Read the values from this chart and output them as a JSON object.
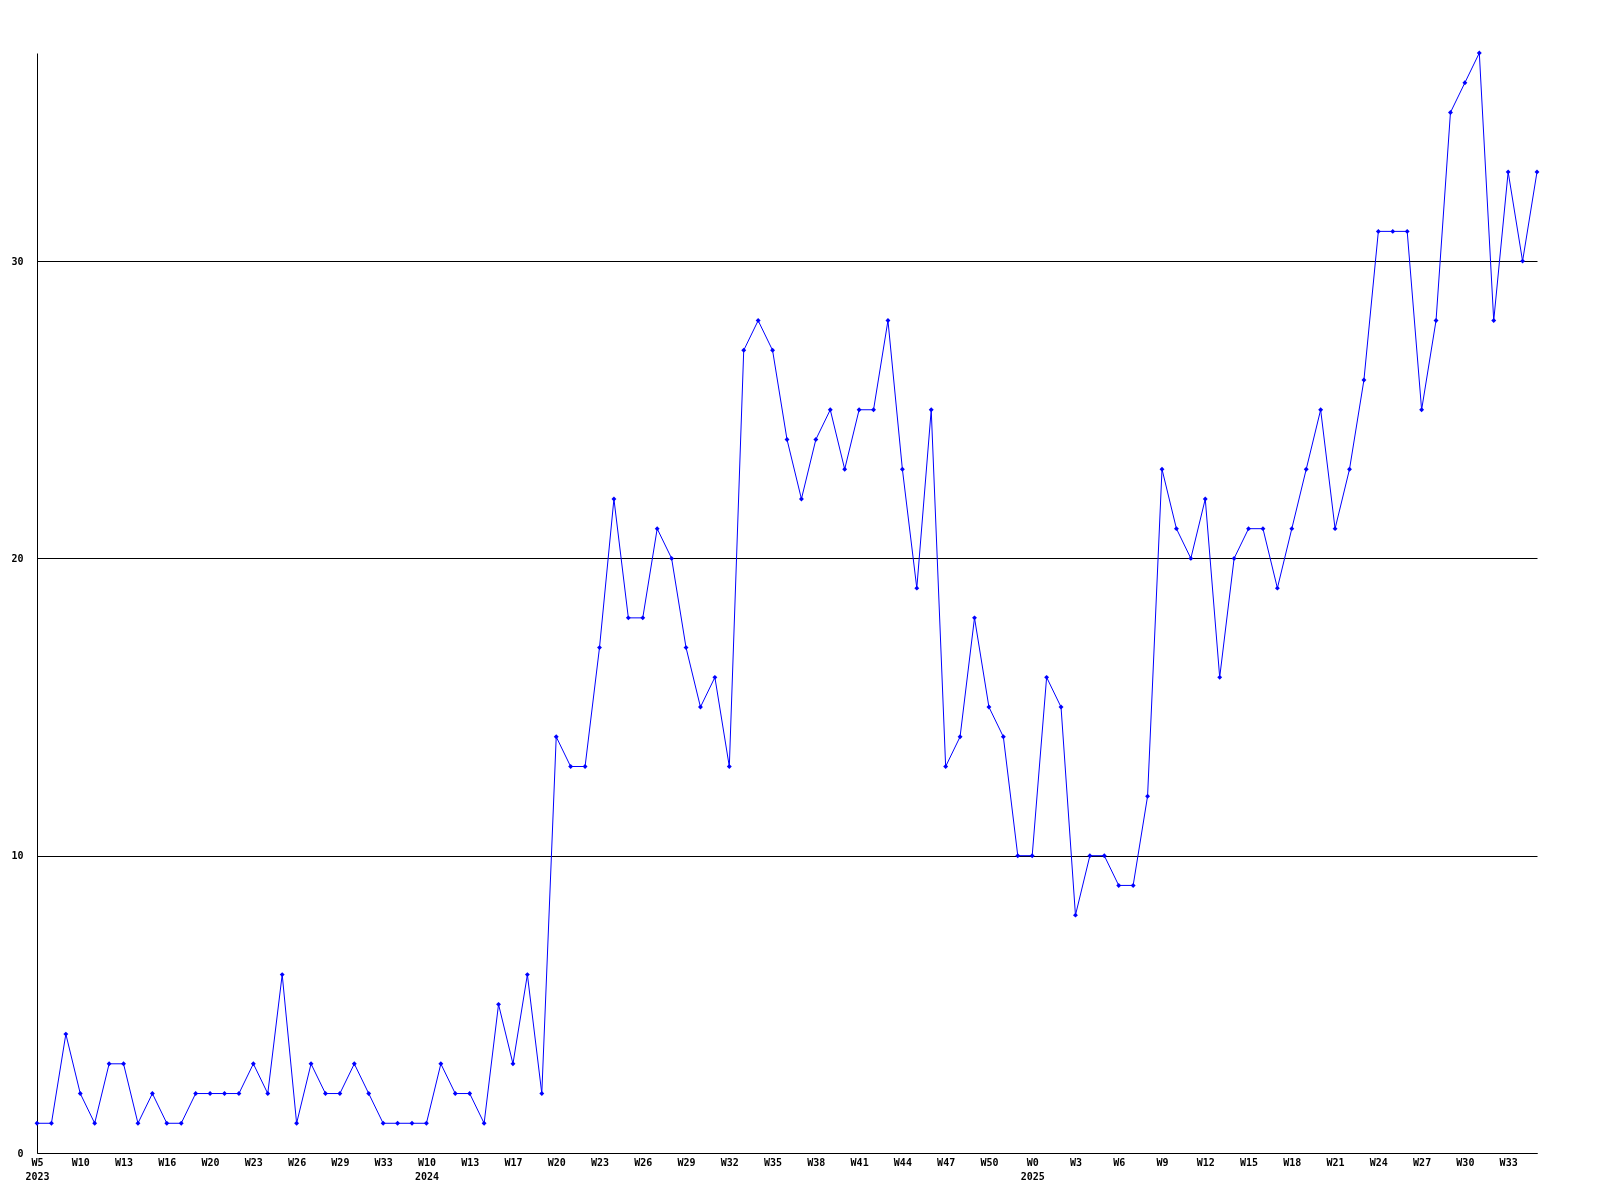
{
  "chart_data": {
    "type": "line",
    "categories": [
      "W5\n2023",
      null,
      null,
      "W10",
      null,
      null,
      "W13",
      null,
      null,
      "W16",
      null,
      null,
      "W20",
      null,
      null,
      "W23",
      null,
      null,
      "W26",
      null,
      null,
      "W29",
      null,
      null,
      "W33",
      null,
      null,
      "W10\n2024",
      null,
      null,
      "W13",
      null,
      null,
      "W17",
      null,
      null,
      "W20",
      null,
      null,
      "W23",
      null,
      null,
      "W26",
      null,
      null,
      "W29",
      null,
      null,
      "W32",
      null,
      null,
      "W35",
      null,
      null,
      "W38",
      null,
      null,
      "W41",
      null,
      null,
      "W44",
      null,
      null,
      "W47",
      null,
      null,
      "W50",
      null,
      null,
      "W0\n2025",
      null,
      null,
      "W3",
      null,
      null,
      "W6",
      null,
      null,
      "W9",
      null,
      null,
      "W12",
      null,
      null,
      "W15",
      null,
      null,
      "W18",
      null,
      null,
      "W21",
      null,
      null,
      "W24",
      null,
      null,
      "W27",
      null,
      null,
      "W30",
      null,
      null,
      "W33",
      null,
      null
    ],
    "series": [
      {
        "color": "#0000ff",
        "values": [
          1,
          1,
          4,
          2,
          1,
          3,
          3,
          1,
          2,
          1,
          1,
          2,
          2,
          2,
          2,
          3,
          2,
          6,
          1,
          3,
          2,
          2,
          3,
          2,
          1,
          1,
          1,
          1,
          3,
          2,
          2,
          1,
          5,
          3,
          6,
          2,
          14,
          13,
          13,
          17,
          22,
          18,
          18,
          21,
          20,
          17,
          15,
          16,
          13,
          27,
          28,
          27,
          24,
          22,
          24,
          25,
          23,
          25,
          25,
          28,
          23,
          19,
          25,
          13,
          14,
          18,
          15,
          14,
          10,
          10,
          16,
          15,
          8,
          10,
          10,
          9,
          9,
          12,
          23,
          21,
          20,
          22,
          16,
          20,
          21,
          21,
          19,
          21,
          23,
          25,
          21,
          23,
          26,
          31,
          31,
          31,
          25,
          28,
          35,
          36,
          37,
          28,
          33,
          30,
          33
        ]
      }
    ],
    "ylim": [
      0,
      37
    ],
    "yticks": [
      0,
      10,
      20,
      30
    ],
    "grid": "y",
    "marker": "diamond",
    "line_style": "solid",
    "legend": false
  }
}
